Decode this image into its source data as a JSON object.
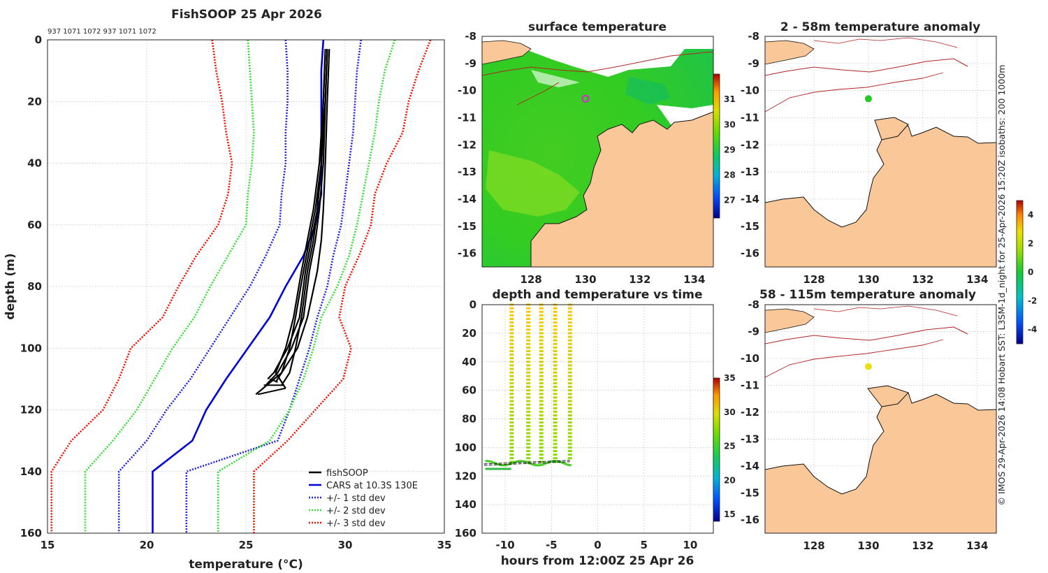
{
  "chart_data": [
    {
      "type": "line",
      "title": "FishSOOP 25 Apr 2026",
      "top_labels": "937 1071 1072 937 1071 1072",
      "xlabel": "temperature (°C)",
      "ylabel": "depth (m)",
      "xlim": [
        15,
        35
      ],
      "ylim": [
        160,
        0
      ],
      "xticks": [
        "15",
        "20",
        "25",
        "30",
        "35"
      ],
      "yticks": [
        "0",
        "20",
        "40",
        "60",
        "80",
        "100",
        "120",
        "140",
        "160"
      ],
      "cars_depth": [
        0,
        10,
        20,
        30,
        40,
        50,
        60,
        70,
        80,
        90,
        100,
        110,
        120,
        130,
        140,
        160
      ],
      "series": [
        {
          "name": "CARS at 10.3S 130E",
          "offset": 0,
          "values": [
            28.9,
            28.8,
            28.8,
            28.8,
            28.8,
            28.8,
            28.5,
            27.9,
            27.0,
            26.2,
            25.1,
            24.0,
            23.0,
            22.3,
            20.3,
            20.3
          ]
        },
        {
          "name": "+/- 1 std dev",
          "offset": 1,
          "values": [
            27.0,
            27.1,
            27.1,
            27.0,
            27.0,
            26.8,
            26.7,
            26.0,
            25.2,
            24.2,
            23.2,
            22.2,
            21.0,
            20.0,
            18.6,
            18.6
          ]
        },
        {
          "name": "+/- 1 std dev",
          "offset": 1,
          "values": [
            30.8,
            30.6,
            30.5,
            30.4,
            30.2,
            30.0,
            29.8,
            29.4,
            29.1,
            28.6,
            28.2,
            27.7,
            27.2,
            26.6,
            22.0,
            22.0
          ]
        },
        {
          "name": "+/- 2 std dev",
          "offset": 2,
          "values": [
            25.1,
            25.2,
            25.3,
            25.4,
            25.3,
            25.1,
            25.0,
            24.1,
            23.2,
            22.4,
            21.3,
            20.4,
            19.5,
            18.3,
            16.9,
            16.9
          ]
        },
        {
          "name": "+/- 2 std dev",
          "offset": 2,
          "values": [
            32.5,
            32.0,
            31.7,
            31.5,
            31.2,
            30.9,
            30.6,
            30.2,
            29.6,
            28.8,
            28.4,
            27.9,
            27.2,
            26.2,
            23.6,
            23.6
          ]
        },
        {
          "name": "+/- 3 std dev",
          "offset": 3,
          "values": [
            23.3,
            23.5,
            23.8,
            24.0,
            24.3,
            24.1,
            23.6,
            22.5,
            21.6,
            20.8,
            19.2,
            18.6,
            17.8,
            16.2,
            15.2,
            15.2
          ]
        },
        {
          "name": "+/- 3 std dev",
          "offset": 3,
          "values": [
            34.3,
            33.7,
            33.2,
            32.9,
            32.1,
            31.5,
            31.3,
            30.7,
            30.0,
            29.7,
            30.3,
            29.9,
            28.5,
            27.1,
            25.4,
            25.4
          ]
        }
      ],
      "fishsoop_profiles": [
        {
          "name": "fishSOOP",
          "temps": [
            29.2,
            29.1,
            29.0,
            28.9,
            28.8,
            28.6,
            28.1,
            27.6,
            26.8,
            25.5
          ],
          "depths": [
            3,
            20,
            40,
            55,
            65,
            75,
            90,
            100,
            108,
            115
          ]
        },
        {
          "name": "fishSOOP",
          "temps": [
            29.1,
            29.0,
            28.9,
            28.7,
            28.5,
            28.2,
            27.9,
            27.3,
            26.6,
            26.0
          ],
          "depths": [
            3,
            20,
            40,
            55,
            65,
            75,
            90,
            100,
            108,
            112
          ]
        },
        {
          "name": "fishSOOP",
          "temps": [
            29.1,
            29.0,
            28.8,
            28.6,
            28.3,
            28.0,
            27.7,
            27.1,
            26.4,
            26.1
          ],
          "depths": [
            3,
            20,
            40,
            55,
            65,
            75,
            90,
            100,
            108,
            110
          ]
        },
        {
          "name": "fishSOOP",
          "temps": [
            29.0,
            28.9,
            28.8,
            28.5,
            28.2,
            27.9,
            27.5,
            27.2,
            26.8,
            26.5
          ],
          "depths": [
            3,
            20,
            40,
            55,
            65,
            75,
            90,
            100,
            108,
            111
          ]
        },
        {
          "name": "fishSOOP",
          "temps": [
            29.0,
            28.9,
            28.7,
            28.4,
            28.1,
            27.8,
            27.4,
            27.0,
            26.5,
            27.0
          ],
          "depths": [
            3,
            20,
            40,
            55,
            65,
            75,
            90,
            100,
            108,
            113
          ]
        },
        {
          "name": "fishSOOP",
          "temps": [
            29.1,
            29.0,
            28.8,
            28.6,
            28.4,
            28.1,
            27.8,
            27.5,
            27.2,
            26.8
          ],
          "depths": [
            3,
            20,
            40,
            55,
            65,
            75,
            90,
            100,
            108,
            112
          ]
        }
      ],
      "legend": [
        "fishSOOP",
        "CARS at 10.3S 130E",
        "+/- 1 std dev",
        "+/- 2 std dev",
        "+/- 3 std dev"
      ],
      "legend_position": "bottom-right"
    },
    {
      "type": "heatmap",
      "title": "surface temperature",
      "xticks": [
        "128",
        "130",
        "132",
        "134"
      ],
      "yticks": [
        "-8",
        "-9",
        "-10",
        "-11",
        "-12",
        "-13",
        "-14",
        "-15",
        "-16"
      ],
      "xlim": [
        126.2,
        134.7
      ],
      "ylim": [
        -16.5,
        -8
      ],
      "marker": {
        "lon": 130,
        "lat": -10.3
      },
      "colorbar_ticks": [
        "27",
        "28",
        "29",
        "30",
        "31"
      ],
      "colorbar_range": [
        26.3,
        32
      ]
    },
    {
      "type": "scatter",
      "title": "depth and temperature vs time",
      "xlabel": "hours from 12:00Z 25 Apr 26",
      "xlim": [
        -12.5,
        12.5
      ],
      "ylim": [
        160,
        0
      ],
      "xticks": [
        "-10",
        "-5",
        "0",
        "5",
        "10"
      ],
      "yticks": [
        "0",
        "20",
        "40",
        "60",
        "80",
        "100",
        "120",
        "140",
        "160"
      ],
      "profile_times": [
        -9.3,
        -7.5,
        -6.1,
        -4.6,
        -3.0
      ],
      "profile_bottom_depths": [
        112,
        111,
        110,
        112,
        109
      ],
      "colorbar_ticks": [
        "15",
        "20",
        "25",
        "30",
        "35"
      ],
      "colorbar_range": [
        14,
        35
      ]
    },
    {
      "type": "scatter",
      "title": "2 - 58m temperature anomaly",
      "xlim": [
        126.2,
        134.7
      ],
      "ylim": [
        -16.5,
        -8
      ],
      "xticks": [
        "128",
        "130",
        "132",
        "134"
      ],
      "yticks": [
        "-8",
        "-9",
        "-10",
        "-11",
        "-12",
        "-13",
        "-14",
        "-15",
        "-16"
      ],
      "point": {
        "lon": 130,
        "lat": -10.3,
        "anomaly": 0.3
      }
    },
    {
      "type": "scatter",
      "title": "58 - 115m temperature anomaly",
      "xlim": [
        126.2,
        134.7
      ],
      "ylim": [
        -16.5,
        -8
      ],
      "xticks": [
        "128",
        "130",
        "132",
        "134"
      ],
      "yticks": [
        "-8",
        "-9",
        "-10",
        "-11",
        "-12",
        "-13",
        "-14",
        "-15",
        "-16"
      ],
      "point": {
        "lon": 130,
        "lat": -10.3,
        "anomaly": 2.5
      },
      "colorbar_ticks": [
        "-4",
        "-2",
        "0",
        "2",
        "4"
      ],
      "colorbar_range": [
        -5,
        5
      ]
    }
  ],
  "side_text": "© IMOS 29-Apr-2026 14:08 Hobart SST: L3SM-1d_night for 25-Apr-2026 15:20Z isobaths: 200  1000m",
  "colors": {
    "cars": "#0000dd",
    "std1": "#2222dd",
    "std2": "#33dd33",
    "std3": "#ee1100",
    "fishsoop": "#000000",
    "land": "#fac898",
    "isobath": "#b22222",
    "marker_ring": "#dd22dd"
  }
}
